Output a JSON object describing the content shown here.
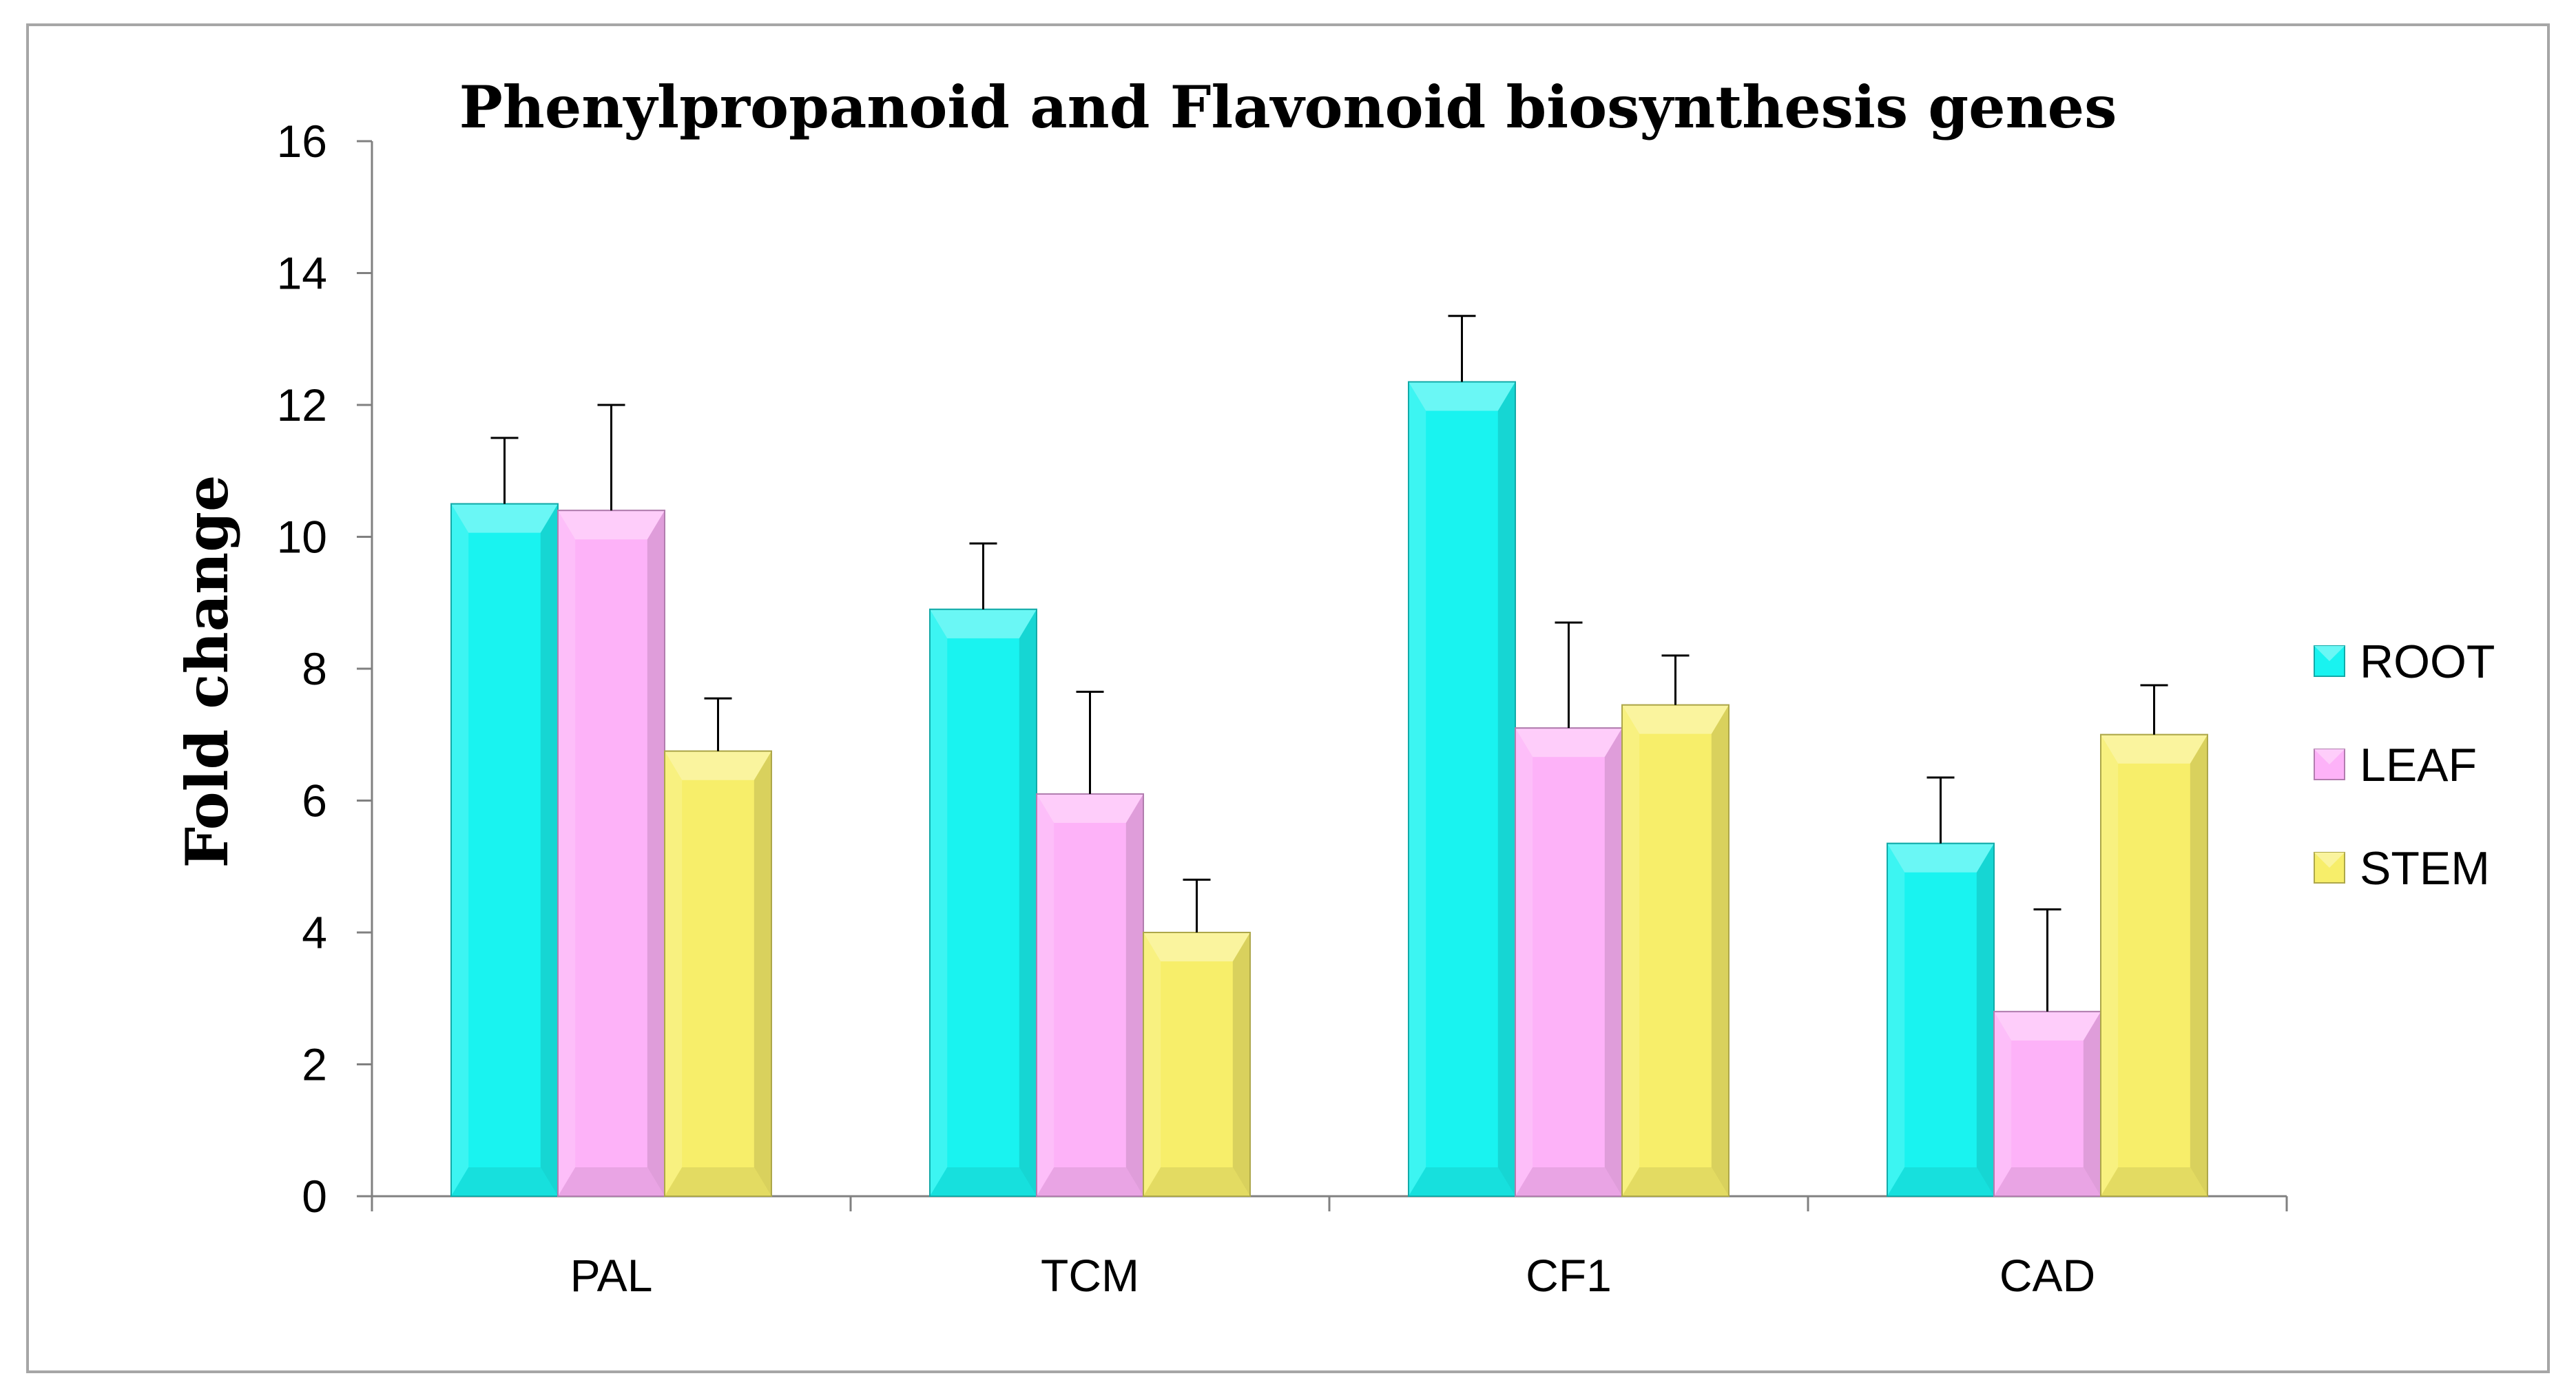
{
  "chart_data": {
    "type": "bar",
    "title": "Phenylpropanoid and Flavonoid biosynthesis genes",
    "xlabel": "",
    "ylabel": "Fold change",
    "ylim": [
      0,
      16
    ],
    "yticks": [
      0,
      2,
      4,
      6,
      8,
      10,
      12,
      14,
      16
    ],
    "grid": false,
    "legend_position": "right",
    "categories": [
      "PAL",
      "TCM",
      "CF1",
      "CAD"
    ],
    "series": [
      {
        "name": "ROOT",
        "color": "#19F3F0",
        "values": [
          10.5,
          8.9,
          12.35,
          5.35
        ],
        "errors": [
          1.0,
          1.0,
          1.0,
          1.0
        ]
      },
      {
        "name": "LEAF",
        "color": "#FDB2F8",
        "values": [
          10.4,
          6.1,
          7.1,
          2.8
        ],
        "errors": [
          1.6,
          1.55,
          1.6,
          1.55
        ]
      },
      {
        "name": "STEM",
        "color": "#F7EE6A",
        "values": [
          6.75,
          4.0,
          7.45,
          7.0
        ],
        "errors": [
          0.8,
          0.8,
          0.75,
          0.75
        ]
      }
    ]
  }
}
